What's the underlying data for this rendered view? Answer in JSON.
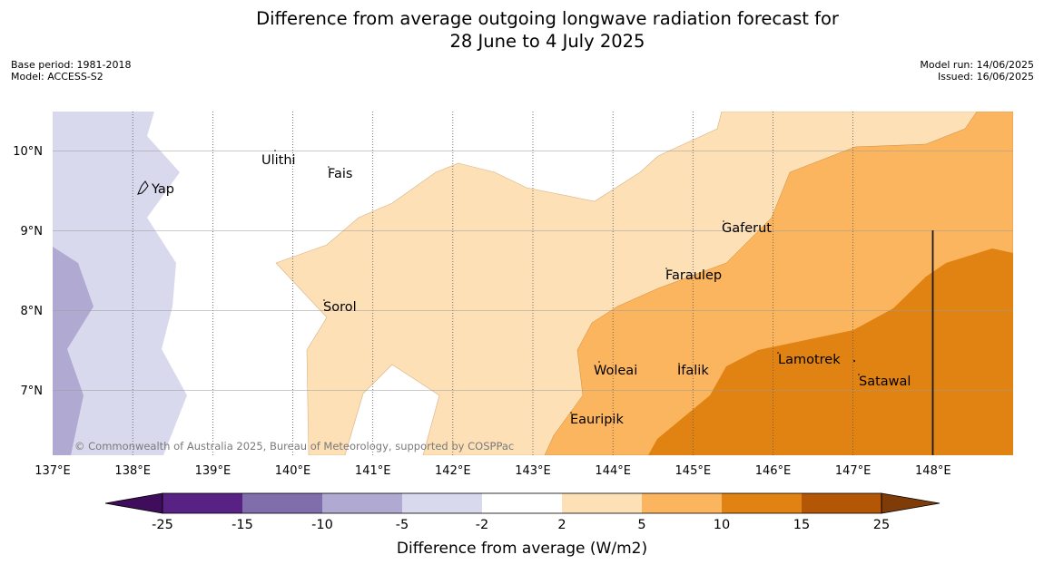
{
  "title_line1": "Difference from average outgoing longwave radiation forecast for",
  "title_line2": "28 June to 4 July 2025",
  "meta": {
    "base_period": "Base period: 1981-2018",
    "model": "Model: ACCESS-S2",
    "model_run": "Model run: 14/06/2025",
    "issued": "Issued: 16/06/2025"
  },
  "map": {
    "lon_range": [
      137,
      149
    ],
    "lat_range": [
      6.2,
      10.5
    ],
    "lon_ticks": [
      "137°E",
      "138°E",
      "139°E",
      "140°E",
      "141°E",
      "142°E",
      "143°E",
      "144°E",
      "145°E",
      "146°E",
      "147°E",
      "148°E"
    ],
    "lat_ticks": [
      "10°N",
      "9°N",
      "8°N",
      "7°N"
    ],
    "places": [
      "Ulithi",
      "Fais",
      "Yap",
      "Gaferut",
      "Faraulep",
      "Sorol",
      "Woleai",
      "Ifalik",
      "Lamotrek",
      "Satawal",
      "Eauripik"
    ],
    "copyright": "© Commonwealth of Australia 2025, Bureau of Meteorology, supported by COSPPac"
  },
  "colorbar": {
    "labels": [
      "-25",
      "-15",
      "-10",
      "-5",
      "-2",
      "2",
      "5",
      "10",
      "15",
      "25"
    ],
    "title": "Difference from average (W/m2)",
    "colors": [
      "#3f0d5c",
      "#582285",
      "#7f6eab",
      "#b0a9d2",
      "#d8d9ec",
      "#ffffff",
      "#fde0b6",
      "#fbb55f",
      "#e08313",
      "#b35706",
      "#7f3b08"
    ]
  }
}
